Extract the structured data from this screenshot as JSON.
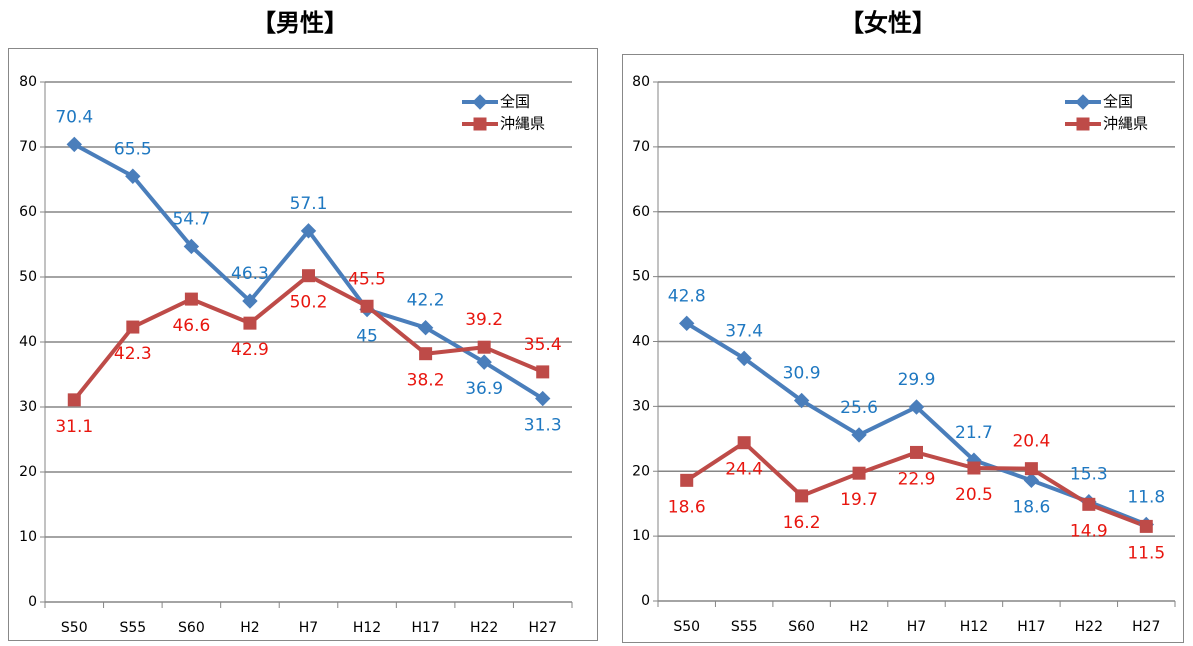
{
  "chart_data": [
    {
      "type": "line",
      "title": "【男性】",
      "categories": [
        "S50",
        "S55",
        "S60",
        "H2",
        "H7",
        "H12",
        "H17",
        "H22",
        "H27"
      ],
      "series": [
        {
          "name": "全国",
          "color": "#4a7ebb",
          "label_color": "#1f78c1",
          "marker": "diamond",
          "values": [
            70.4,
            65.5,
            54.7,
            46.3,
            57.1,
            45,
            42.2,
            36.9,
            31.3
          ]
        },
        {
          "name": "沖縄県",
          "color": "#be4b48",
          "label_color": "#e8160f",
          "marker": "square",
          "values": [
            31.1,
            42.3,
            46.6,
            42.9,
            50.2,
            45.5,
            38.2,
            39.2,
            35.4
          ]
        }
      ],
      "ylim": [
        0,
        80
      ],
      "yticks": [
        0,
        10,
        20,
        30,
        40,
        50,
        60,
        70,
        80
      ],
      "grid": true,
      "legend": "upper right"
    },
    {
      "type": "line",
      "title": "【女性】",
      "categories": [
        "S50",
        "S55",
        "S60",
        "H2",
        "H7",
        "H12",
        "H17",
        "H22",
        "H27"
      ],
      "series": [
        {
          "name": "全国",
          "color": "#4a7ebb",
          "label_color": "#1f78c1",
          "marker": "diamond",
          "values": [
            42.8,
            37.4,
            30.9,
            25.6,
            29.9,
            21.7,
            18.6,
            15.3,
            11.8
          ]
        },
        {
          "name": "沖縄県",
          "color": "#be4b48",
          "label_color": "#e8160f",
          "marker": "square",
          "values": [
            18.6,
            24.4,
            16.2,
            19.7,
            22.9,
            20.5,
            20.4,
            14.9,
            11.5
          ]
        }
      ],
      "ylim": [
        0,
        80
      ],
      "yticks": [
        0,
        10,
        20,
        30,
        40,
        50,
        60,
        70,
        80
      ],
      "grid": true,
      "legend": "upper right"
    }
  ]
}
